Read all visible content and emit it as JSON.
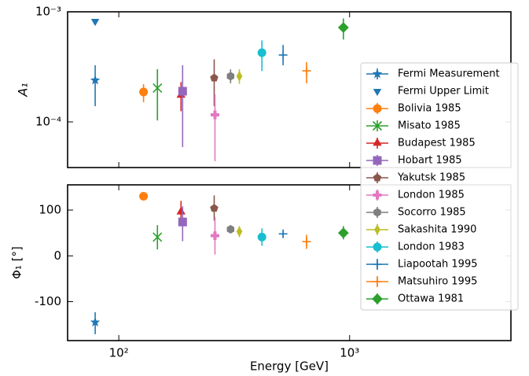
{
  "chart_data": {
    "type": "scatter",
    "xlabel": "Energy [GeV]",
    "x_scale": "log",
    "xlim": [
      60,
      5000
    ],
    "xticks": [
      {
        "value": 100,
        "label": "10²"
      },
      {
        "value": 1000,
        "label": "10³"
      }
    ],
    "panels": [
      {
        "ylabel": "A₁",
        "y_scale": "log",
        "ylim": [
          3.85e-05,
          0.001
        ],
        "yticks": [
          {
            "value": 0.0001,
            "label": "10⁻⁴"
          },
          {
            "value": 0.001,
            "label": "10⁻³"
          }
        ]
      },
      {
        "ylabel": "Φ₁ [°]",
        "y_scale": "linear",
        "ylim": [
          -185,
          155
        ],
        "yticks": [
          -100,
          0,
          100
        ]
      }
    ],
    "series": [
      {
        "name": "Fermi Measurement",
        "color": "#1f77b4",
        "marker": "star",
        "x": [
          79
        ],
        "values": [
          0.000239
        ],
        "lower": [
          0.000139
        ],
        "upper": [
          0.000327
        ],
        "phase": [
          -145
        ],
        "phase_lower": [
          -171
        ],
        "phase_upper": [
          -123
        ]
      },
      {
        "name": "Fermi Upper Limit",
        "color": "#1f77b4",
        "marker": "triangle-down",
        "x": [
          79
        ],
        "values": [
          0.00082
        ],
        "lower": [
          null
        ],
        "upper": [
          null
        ],
        "phase": [
          null
        ],
        "phase_lower": [
          null
        ],
        "phase_upper": [
          null
        ]
      },
      {
        "name": "Bolivia 1985",
        "color": "#ff7f0e",
        "marker": "circle",
        "x": [
          128
        ],
        "values": [
          0.000187
        ],
        "lower": [
          0.000151
        ],
        "upper": [
          0.00022
        ],
        "phase": [
          130
        ],
        "phase_lower": [
          124
        ],
        "phase_upper": [
          136
        ]
      },
      {
        "name": "Misato 1985",
        "color": "#2ca02c",
        "marker": "x",
        "x": [
          147
        ],
        "values": [
          0.000203
        ],
        "lower": [
          0.000103
        ],
        "upper": [
          0.000301
        ],
        "phase": [
          41
        ],
        "phase_lower": [
          14
        ],
        "phase_upper": [
          67
        ]
      },
      {
        "name": "Budapest 1985",
        "color": "#d62728",
        "marker": "triangle-up",
        "x": [
          186
        ],
        "values": [
          0.000175
        ],
        "lower": [
          0.000125
        ],
        "upper": [
          0.00023
        ],
        "phase": [
          96
        ],
        "phase_lower": [
          68
        ],
        "phase_upper": [
          120
        ]
      },
      {
        "name": "Hobart 1985",
        "color": "#9467bd",
        "marker": "square",
        "x": [
          189
        ],
        "values": [
          0.00019
        ],
        "lower": [
          5.9e-05
        ],
        "upper": [
          0.000327
        ],
        "phase": [
          74
        ],
        "phase_lower": [
          32
        ],
        "phase_upper": [
          108
        ]
      },
      {
        "name": "Yakutsk 1985",
        "color": "#8c564b",
        "marker": "pentagon",
        "x": [
          259
        ],
        "values": [
          0.000251
        ],
        "lower": [
          0.000139
        ],
        "upper": [
          0.00037
        ],
        "phase": [
          104
        ],
        "phase_lower": [
          77
        ],
        "phase_upper": [
          132
        ]
      },
      {
        "name": "London 1985",
        "color": "#e377c2",
        "marker": "plus-bold",
        "x": [
          261
        ],
        "values": [
          0.000116
        ],
        "lower": [
          4.4e-05
        ],
        "upper": [
          0.000178
        ],
        "phase": [
          44
        ],
        "phase_lower": [
          3
        ],
        "phase_upper": [
          85
        ]
      },
      {
        "name": "Socorro 1985",
        "color": "#7f7f7f",
        "marker": "hexagon",
        "x": [
          305
        ],
        "values": [
          0.00026
        ],
        "lower": [
          0.000224
        ],
        "upper": [
          0.0003
        ],
        "phase": [
          58
        ],
        "phase_lower": [
          52
        ],
        "phase_upper": [
          64
        ]
      },
      {
        "name": "Sakashita 1990",
        "color": "#bcbd22",
        "marker": "thin-diamond",
        "x": [
          333
        ],
        "values": [
          0.00026
        ],
        "lower": [
          0.000222
        ],
        "upper": [
          0.0003
        ],
        "phase": [
          53
        ],
        "phase_lower": [
          41
        ],
        "phase_upper": [
          65
        ]
      },
      {
        "name": "London 1983",
        "color": "#17becf",
        "marker": "circle",
        "x": [
          417
        ],
        "values": [
          0.000425
        ],
        "lower": [
          0.00029
        ],
        "upper": [
          0.00055
        ],
        "phase": [
          41
        ],
        "phase_lower": [
          22
        ],
        "phase_upper": [
          60
        ]
      },
      {
        "name": "Liapootah 1995",
        "color": "#1f77b4",
        "marker": "plus",
        "x": [
          515
        ],
        "values": [
          0.000405
        ],
        "lower": [
          0.000327
        ],
        "upper": [
          0.0005
        ],
        "phase": [
          48
        ],
        "phase_lower": [
          42
        ],
        "phase_upper": [
          54
        ]
      },
      {
        "name": "Matsuhiro 1995",
        "color": "#ff7f0e",
        "marker": "plus",
        "x": [
          651
        ],
        "values": [
          0.000291
        ],
        "lower": [
          0.000224
        ],
        "upper": [
          0.000349
        ],
        "phase": [
          31
        ],
        "phase_lower": [
          15
        ],
        "phase_upper": [
          46
        ]
      },
      {
        "name": "Ottawa 1981",
        "color": "#2ca02c",
        "marker": "diamond",
        "x": [
          940
        ],
        "values": [
          0.00072
        ],
        "lower": [
          0.00056
        ],
        "upper": [
          0.00087
        ],
        "phase": [
          50
        ],
        "phase_lower": [
          36
        ],
        "phase_upper": [
          65
        ]
      }
    ]
  }
}
